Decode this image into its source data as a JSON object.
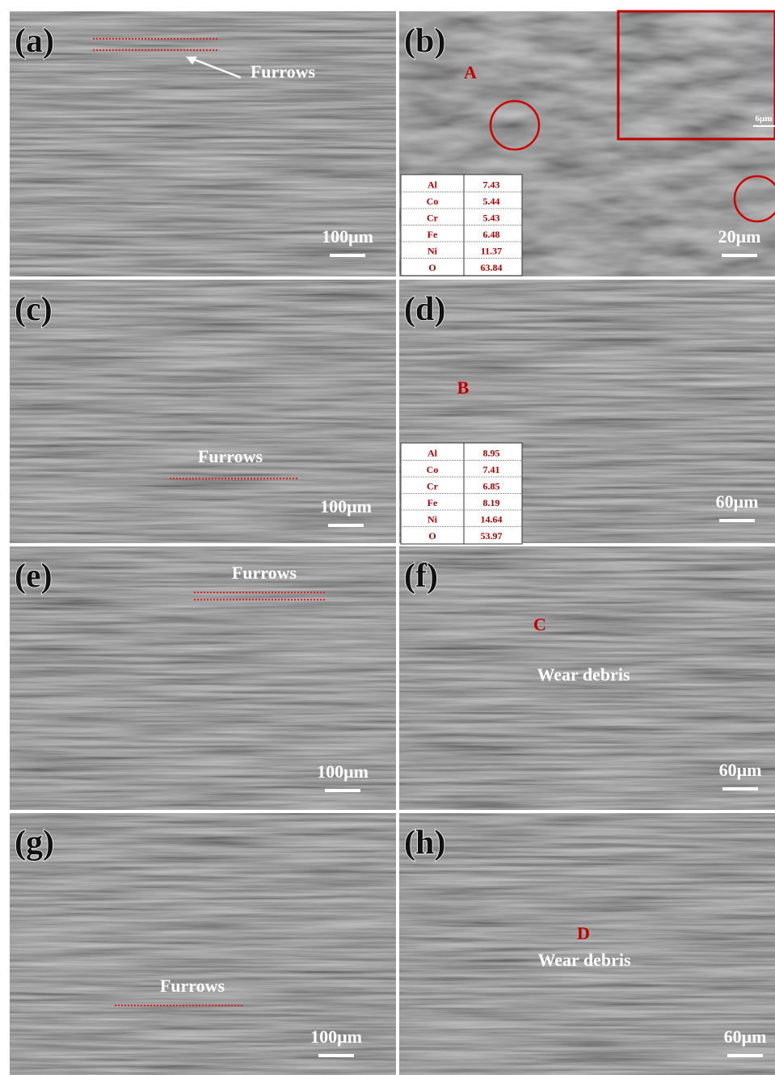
{
  "panels": [
    {
      "label": "(a)",
      "scale_bar": "100μm",
      "annotations": [
        "Furrows"
      ]
    },
    {
      "label": "(b)",
      "scale_bar": "20μm",
      "annotations": [
        "A"
      ],
      "inset_scale_bar": "6μm",
      "table": {
        "rows": [
          [
            "Al",
            "7.43"
          ],
          [
            "Co",
            "5.44"
          ],
          [
            "Cr",
            "5.43"
          ],
          [
            "Fe",
            "6.48"
          ],
          [
            "Ni",
            "11.37"
          ],
          [
            "O",
            "63.84"
          ]
        ]
      }
    },
    {
      "label": "(c)",
      "scale_bar": "100μm",
      "annotations": [
        "Furrows"
      ]
    },
    {
      "label": "(d)",
      "scale_bar": "60μm",
      "annotations": [
        "B"
      ],
      "table": {
        "rows": [
          [
            "Al",
            "8.95"
          ],
          [
            "Co",
            "7.41"
          ],
          [
            "Cr",
            "6.85"
          ],
          [
            "Fe",
            "8.19"
          ],
          [
            "Ni",
            "14.64"
          ],
          [
            "O",
            "53.97"
          ]
        ]
      }
    },
    {
      "label": "(e)",
      "scale_bar": "100μm",
      "annotations": [
        "Furrows"
      ]
    },
    {
      "label": "(f)",
      "scale_bar": "60μm",
      "annotations": [
        "C",
        "Wear debris"
      ]
    },
    {
      "label": "(g)",
      "scale_bar": "100μm",
      "annotations": [
        "Furrows"
      ]
    },
    {
      "label": "(h)",
      "scale_bar": "60μm",
      "annotations": [
        "D",
        "Wear debris"
      ]
    }
  ]
}
